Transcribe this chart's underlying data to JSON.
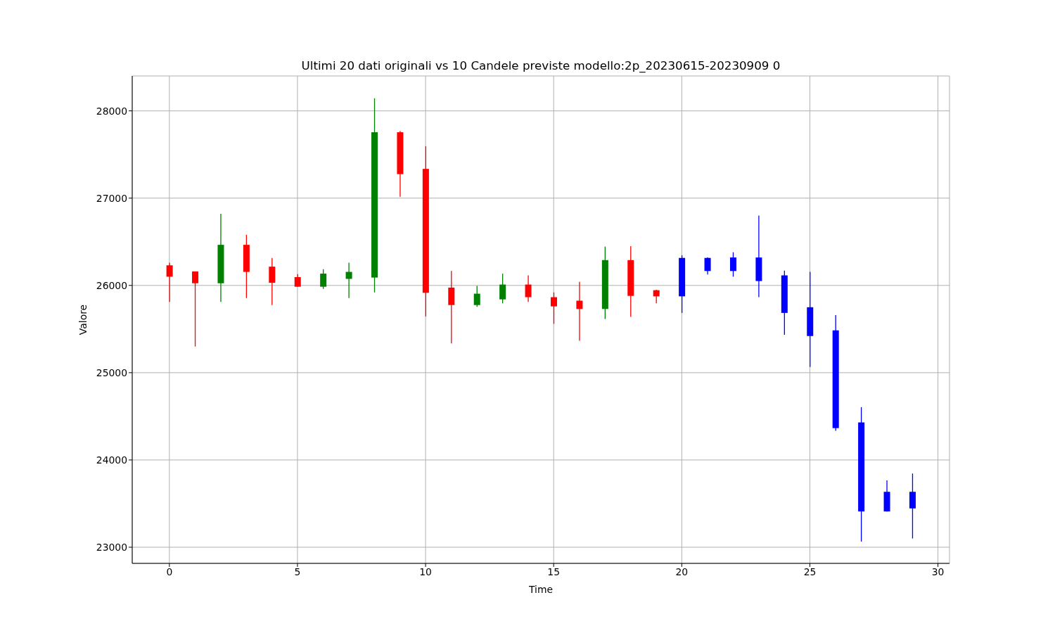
{
  "chart_data": {
    "type": "candlestick",
    "title": "Ultimi 20 dati originali vs 10 Candele previste modello:2p_20230615-20230909 0",
    "xlabel": "Time",
    "ylabel": "Valore",
    "x": [
      0,
      1,
      2,
      3,
      4,
      5,
      6,
      7,
      8,
      9,
      10,
      11,
      12,
      13,
      14,
      15,
      16,
      17,
      18,
      19,
      20,
      21,
      22,
      23,
      24,
      25,
      26,
      27,
      28,
      29
    ],
    "ohlc": [
      [
        26230,
        26260,
        25810,
        26100
      ],
      [
        26160,
        26160,
        25300,
        26025
      ],
      [
        26025,
        26820,
        25810,
        26465
      ],
      [
        26465,
        26580,
        25855,
        26155
      ],
      [
        26215,
        26315,
        25775,
        26030
      ],
      [
        26095,
        26130,
        25985,
        25985
      ],
      [
        25985,
        26185,
        25960,
        26135
      ],
      [
        26075,
        26260,
        25855,
        26155
      ],
      [
        26090,
        28145,
        25920,
        27755
      ],
      [
        27755,
        27770,
        27015,
        27275
      ],
      [
        27335,
        27595,
        25645,
        25915
      ],
      [
        25975,
        26165,
        25335,
        25775
      ],
      [
        25775,
        25995,
        25755,
        25905
      ],
      [
        25840,
        26135,
        25795,
        26010
      ],
      [
        26010,
        26115,
        25810,
        25865
      ],
      [
        25865,
        25920,
        25560,
        25760
      ],
      [
        25825,
        26040,
        25365,
        25730
      ],
      [
        25730,
        26445,
        25615,
        26290
      ],
      [
        26290,
        26450,
        25640,
        25880
      ],
      [
        25945,
        25950,
        25795,
        25875
      ],
      [
        25875,
        26345,
        25685,
        26315
      ],
      [
        26315,
        26320,
        26125,
        26165
      ],
      [
        26165,
        26380,
        26100,
        26320
      ],
      [
        26320,
        26800,
        25865,
        26050
      ],
      [
        26115,
        26170,
        25435,
        25685
      ],
      [
        25750,
        26155,
        25065,
        25420
      ],
      [
        25485,
        25660,
        24335,
        24365
      ],
      [
        24430,
        24605,
        23065,
        23410
      ],
      [
        23635,
        23765,
        23410,
        23410
      ],
      [
        23635,
        23845,
        23100,
        23445
      ]
    ],
    "colors": [
      "#ff0000",
      "#ff0000",
      "#008000",
      "#ff0000",
      "#ff0000",
      "#ff0000",
      "#008000",
      "#008000",
      "#008000",
      "#ff0000",
      "#ff0000",
      "#ff0000",
      "#008000",
      "#008000",
      "#ff0000",
      "#ff0000",
      "#ff0000",
      "#008000",
      "#ff0000",
      "#ff0000",
      "#0000ff",
      "#0000ff",
      "#0000ff",
      "#0000ff",
      "#0000ff",
      "#0000ff",
      "#0000ff",
      "#0000ff",
      "#0000ff",
      "#0000ff"
    ],
    "xlim": [
      -1.45,
      30.45
    ],
    "xticks": [
      0,
      5,
      10,
      15,
      20,
      25,
      30
    ],
    "ylim": [
      22815,
      28400
    ],
    "yticks": [
      23000,
      24000,
      25000,
      26000,
      27000,
      28000
    ],
    "grid": true
  }
}
